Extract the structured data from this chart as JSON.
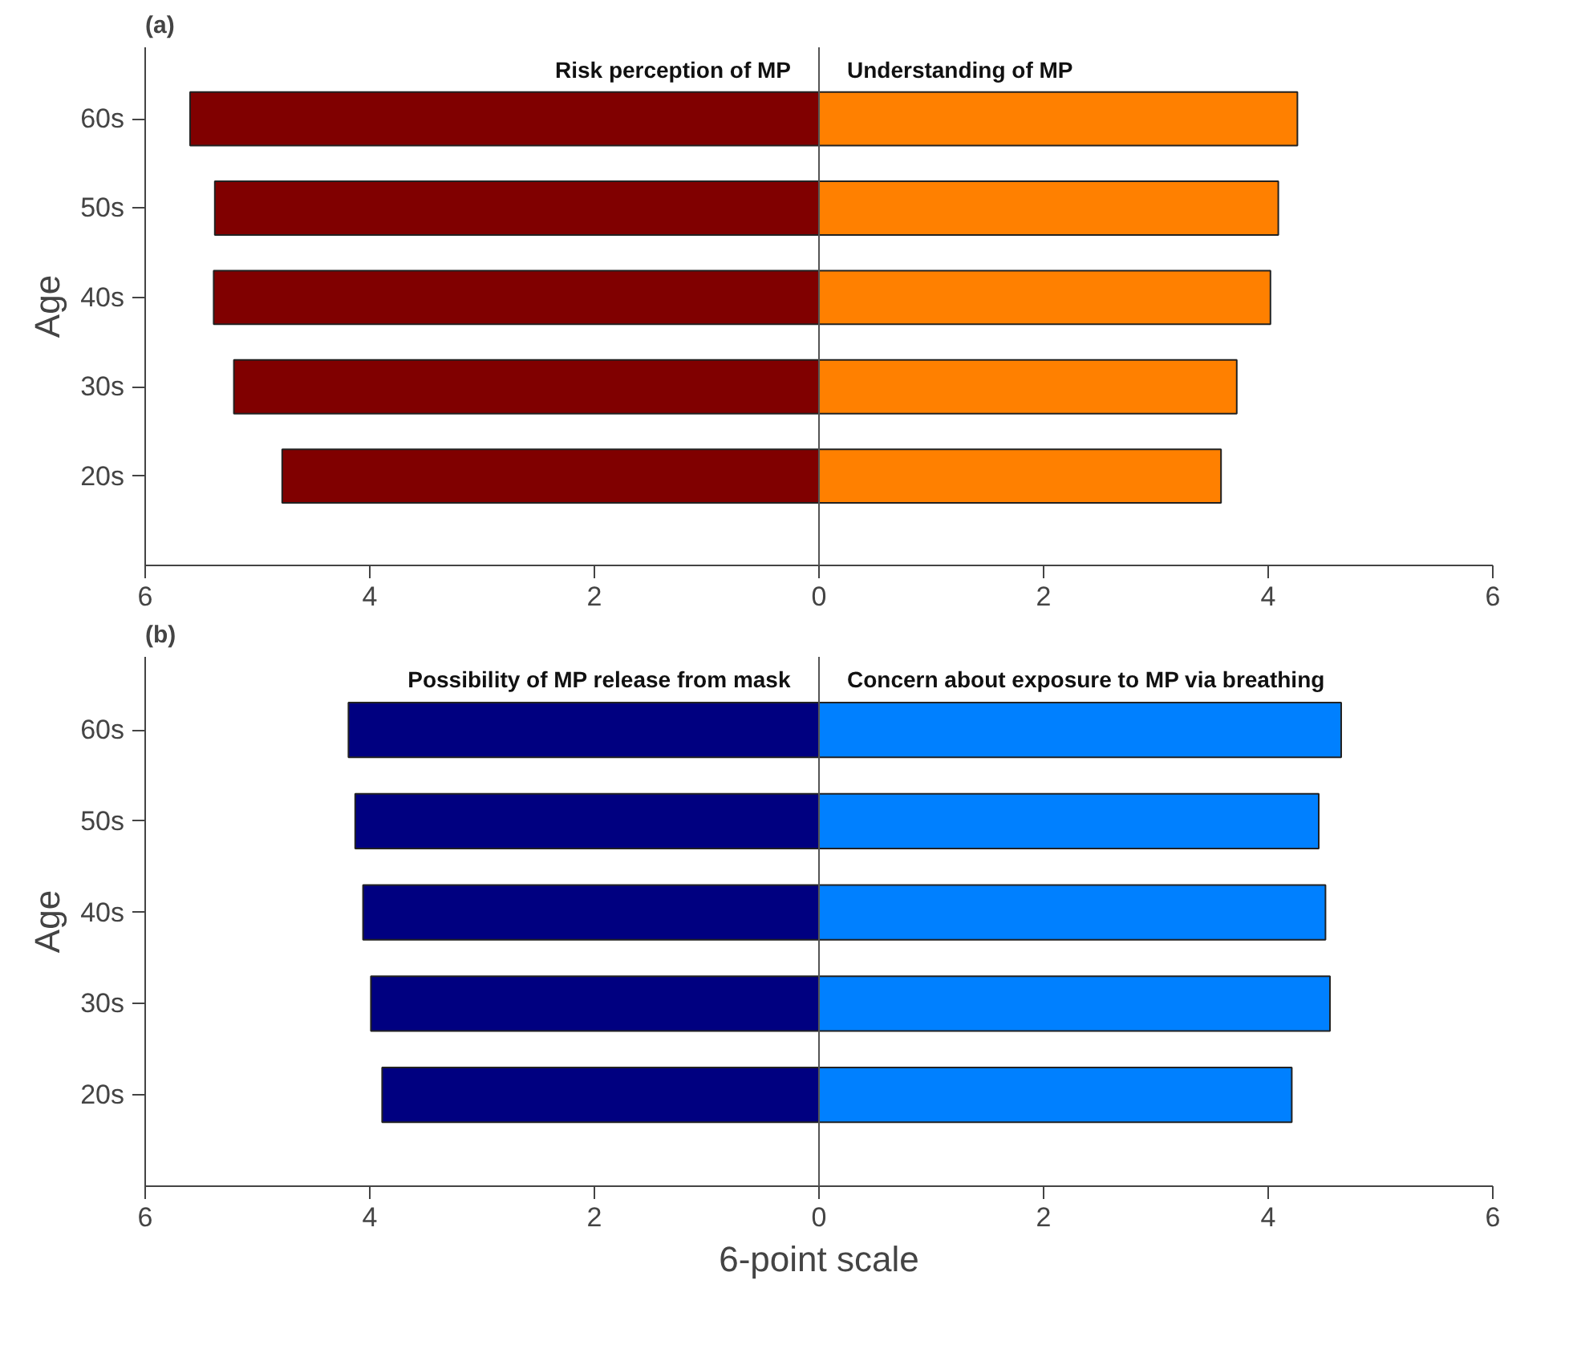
{
  "chart_data": [
    {
      "type": "bar",
      "title": "(a)",
      "ylabel": "Age",
      "orientation": "horizontal",
      "stacked": true,
      "legend": false,
      "grid": false,
      "categories": [
        "60s",
        "50s",
        "40s",
        "30s",
        "20s"
      ],
      "ref_lines": [
        {
          "axis": "x",
          "value": 0,
          "color": "#555555"
        }
      ],
      "xlim": [
        -6,
        6
      ],
      "xticks": [
        {
          "value": -6,
          "label": "6"
        },
        {
          "value": -4,
          "label": "4"
        },
        {
          "value": -2,
          "label": "2"
        },
        0,
        2,
        4,
        6
      ],
      "series": [
        {
          "name": "Risk perception of MP",
          "color": "#800000",
          "values": [
            -5.6,
            -5.38,
            -5.39,
            -5.21,
            -4.78
          ]
        },
        {
          "name": "Understanding of MP",
          "color": "#ff8000",
          "values": [
            4.26,
            4.09,
            4.02,
            3.72,
            3.58
          ]
        }
      ]
    },
    {
      "type": "bar",
      "title": "(b)",
      "ylabel": "Age",
      "xlabel": "6-point scale",
      "orientation": "horizontal",
      "stacked": true,
      "legend": false,
      "grid": false,
      "categories": [
        "60s",
        "50s",
        "40s",
        "30s",
        "20s"
      ],
      "ref_lines": [
        {
          "axis": "x",
          "value": 0,
          "color": "#555555"
        }
      ],
      "xlim": [
        -6,
        6
      ],
      "xticks": [
        {
          "value": -6,
          "label": "6"
        },
        {
          "value": -4,
          "label": "4"
        },
        {
          "value": -2,
          "label": "2"
        },
        0,
        2,
        4,
        6
      ],
      "series": [
        {
          "name": "Possibility of MP release from mask",
          "color": "#000080",
          "values": [
            -4.19,
            -4.13,
            -4.06,
            -3.99,
            -3.89
          ]
        },
        {
          "name": "Concern about exposure to MP via breathing",
          "color": "#0080ff",
          "values": [
            4.65,
            4.45,
            4.51,
            4.55,
            4.21
          ]
        }
      ]
    }
  ]
}
